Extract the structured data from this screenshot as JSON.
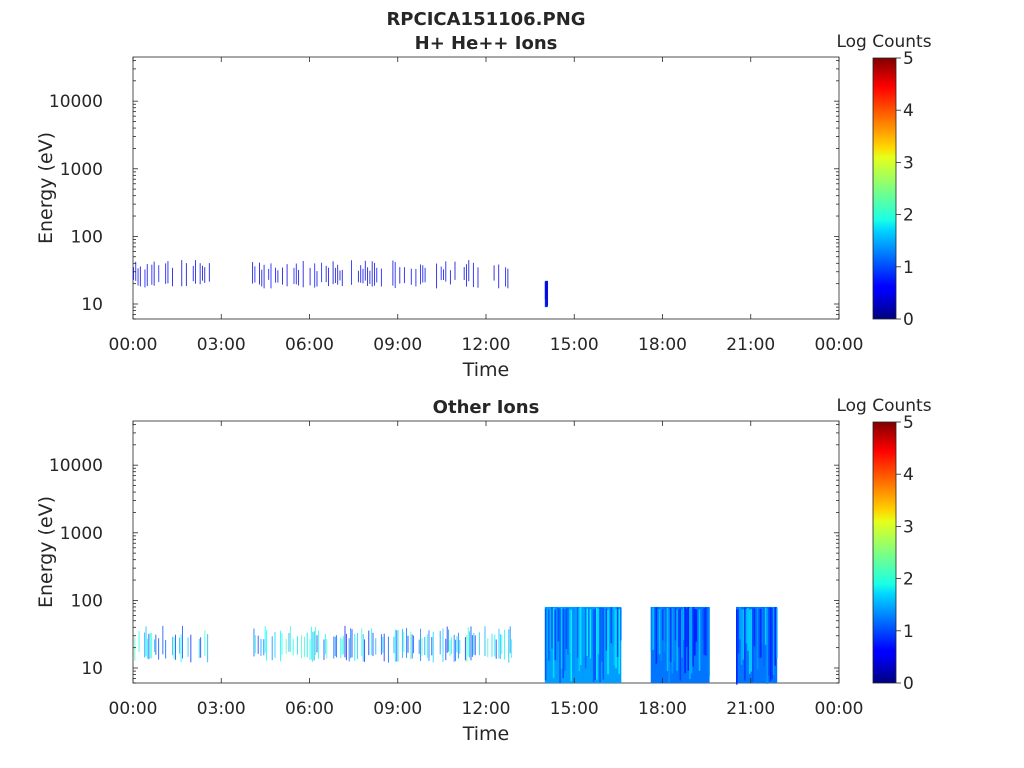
{
  "chart_data": [
    {
      "type": "heatmap",
      "title": "RPCICA151106.PNG",
      "subtitle": "H+ He++ Ions",
      "xlabel": "Time",
      "ylabel": "Energy (eV)",
      "x_ticks": [
        "00:00",
        "03:00",
        "06:00",
        "09:00",
        "12:00",
        "15:00",
        "18:00",
        "21:00",
        "00:00"
      ],
      "xlim_hours": [
        0,
        24
      ],
      "y_scale": "log",
      "ylim": [
        6,
        45000
      ],
      "y_ticks": [
        10,
        100,
        1000,
        10000
      ],
      "y_tick_labels": [
        "10",
        "100",
        "1000",
        "10000"
      ],
      "colorbar": {
        "label": "Log Counts",
        "ticks": [
          "0",
          "1",
          "2",
          "3",
          "4",
          "5"
        ],
        "range": [
          0,
          5
        ],
        "colormap": "jet"
      },
      "data_blocks": [
        {
          "t_start": 0.0,
          "t_end": 2.6,
          "e_min": 17,
          "e_max": 45,
          "log_counts": 0.5,
          "style": "sparse"
        },
        {
          "t_start": 4.05,
          "t_end": 12.9,
          "e_min": 17,
          "e_max": 45,
          "log_counts": 0.5,
          "style": "sparse"
        },
        {
          "t_start": 14.0,
          "t_end": 14.1,
          "e_min": 9,
          "e_max": 22,
          "log_counts": 0.8,
          "style": "dense"
        }
      ]
    },
    {
      "type": "heatmap",
      "title": "Other Ions",
      "xlabel": "Time",
      "ylabel": "Energy (eV)",
      "x_ticks": [
        "00:00",
        "03:00",
        "06:00",
        "09:00",
        "12:00",
        "15:00",
        "18:00",
        "21:00",
        "00:00"
      ],
      "xlim_hours": [
        0,
        24
      ],
      "y_scale": "log",
      "ylim": [
        6,
        45000
      ],
      "y_ticks": [
        10,
        100,
        1000,
        10000
      ],
      "y_tick_labels": [
        "10",
        "100",
        "1000",
        "10000"
      ],
      "colorbar": {
        "label": "Log Counts",
        "ticks": [
          "0",
          "1",
          "2",
          "3",
          "4",
          "5"
        ],
        "range": [
          0,
          5
        ],
        "colormap": "jet"
      },
      "data_blocks": [
        {
          "t_start": 0.0,
          "t_end": 2.6,
          "e_min": 12,
          "e_max": 42,
          "log_counts": 1.5,
          "style": "banded"
        },
        {
          "t_start": 4.05,
          "t_end": 12.9,
          "e_min": 12,
          "e_max": 42,
          "log_counts": 1.5,
          "style": "banded"
        },
        {
          "t_start": 14.0,
          "t_end": 16.6,
          "e_min": 6,
          "e_max": 80,
          "log_counts": 1.4,
          "style": "dense"
        },
        {
          "t_start": 17.6,
          "t_end": 19.6,
          "e_min": 6,
          "e_max": 80,
          "log_counts": 1.2,
          "style": "dense"
        },
        {
          "t_start": 20.5,
          "t_end": 21.9,
          "e_min": 6,
          "e_max": 80,
          "log_counts": 1.2,
          "style": "dense"
        }
      ]
    }
  ]
}
